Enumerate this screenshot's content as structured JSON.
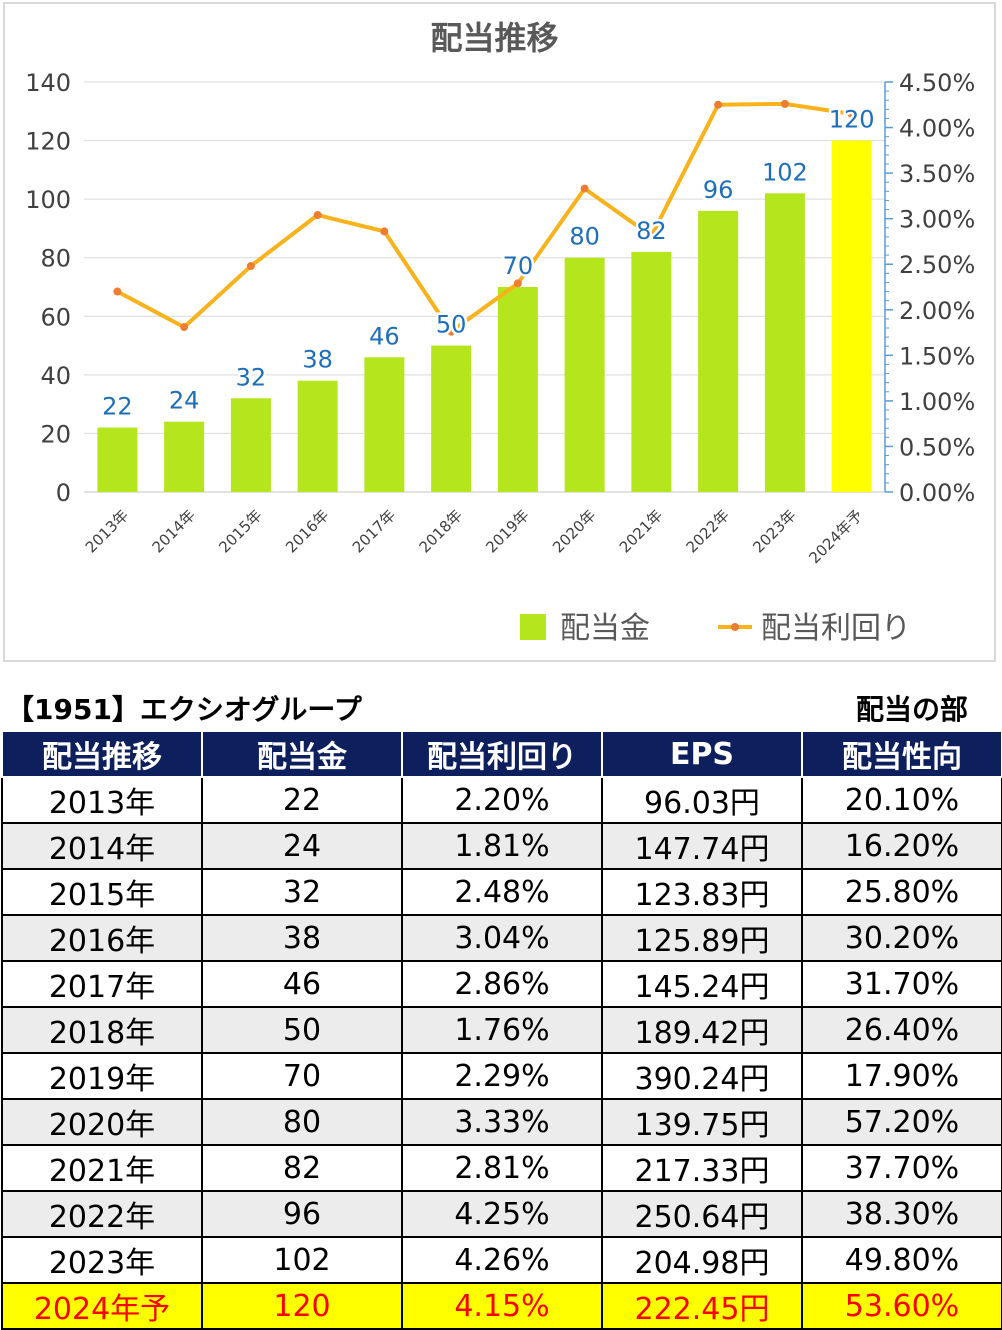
{
  "chart_data": {
    "type": "bar",
    "title": "配当推移",
    "categories": [
      "2013年",
      "2014年",
      "2015年",
      "2016年",
      "2017年",
      "2018年",
      "2019年",
      "2020年",
      "2021年",
      "2022年",
      "2023年",
      "2024年予"
    ],
    "series": [
      {
        "name": "配当金",
        "type": "bar",
        "axis": "left",
        "values": [
          22,
          24,
          32,
          38,
          46,
          50,
          70,
          80,
          82,
          96,
          102,
          120
        ],
        "data_labels": [
          "22",
          "24",
          "32",
          "38",
          "46",
          "50",
          "70",
          "80",
          "82",
          "96",
          "102",
          "120"
        ]
      },
      {
        "name": "配当利回り",
        "type": "line",
        "axis": "right",
        "values": [
          2.2,
          1.81,
          2.48,
          3.04,
          2.86,
          1.76,
          2.29,
          3.33,
          2.81,
          4.25,
          4.26,
          4.15
        ]
      }
    ],
    "y_left": {
      "min": 0,
      "max": 140,
      "ticks": [
        "0",
        "20",
        "40",
        "60",
        "80",
        "100",
        "120",
        "140"
      ]
    },
    "y_right": {
      "min": 0,
      "max": 4.5,
      "ticks": [
        "0.00%",
        "0.50%",
        "1.00%",
        "1.50%",
        "2.00%",
        "2.50%",
        "3.00%",
        "3.50%",
        "4.00%",
        "4.50%"
      ]
    },
    "grid": true,
    "legend_position": "bottom-right",
    "colors": {
      "bar": "#b5e61d",
      "bar_forecast": "#ffff00",
      "line": "#f7b21c",
      "marker": "#ed7d31",
      "data_label": "#1f6fb8",
      "axis_right": "#5b9bd5"
    }
  },
  "table": {
    "title": "【1951】エクシオグループ",
    "section": "配当の部",
    "headers": [
      "配当推移",
      "配当金",
      "配当利回り",
      "EPS",
      "配当性向"
    ],
    "rows": [
      [
        "2013年",
        "22",
        "2.20%",
        "96.03円",
        "20.10%"
      ],
      [
        "2014年",
        "24",
        "1.81%",
        "147.74円",
        "16.20%"
      ],
      [
        "2015年",
        "32",
        "2.48%",
        "123.83円",
        "25.80%"
      ],
      [
        "2016年",
        "38",
        "3.04%",
        "125.89円",
        "30.20%"
      ],
      [
        "2017年",
        "46",
        "2.86%",
        "145.24円",
        "31.70%"
      ],
      [
        "2018年",
        "50",
        "1.76%",
        "189.42円",
        "26.40%"
      ],
      [
        "2019年",
        "70",
        "2.29%",
        "390.24円",
        "17.90%"
      ],
      [
        "2020年",
        "80",
        "3.33%",
        "139.75円",
        "57.20%"
      ],
      [
        "2021年",
        "82",
        "2.81%",
        "217.33円",
        "37.70%"
      ],
      [
        "2022年",
        "96",
        "4.25%",
        "250.64円",
        "38.30%"
      ],
      [
        "2023年",
        "102",
        "4.26%",
        "204.98円",
        "49.80%"
      ],
      [
        "2024年予",
        "120",
        "4.15%",
        "222.45円",
        "53.60%"
      ]
    ],
    "colors": {
      "header_bg": "#0d1f5c",
      "header_text": "#ffffff",
      "forecast_bg": "#ffff00",
      "forecast_text": "#ff0000"
    }
  }
}
